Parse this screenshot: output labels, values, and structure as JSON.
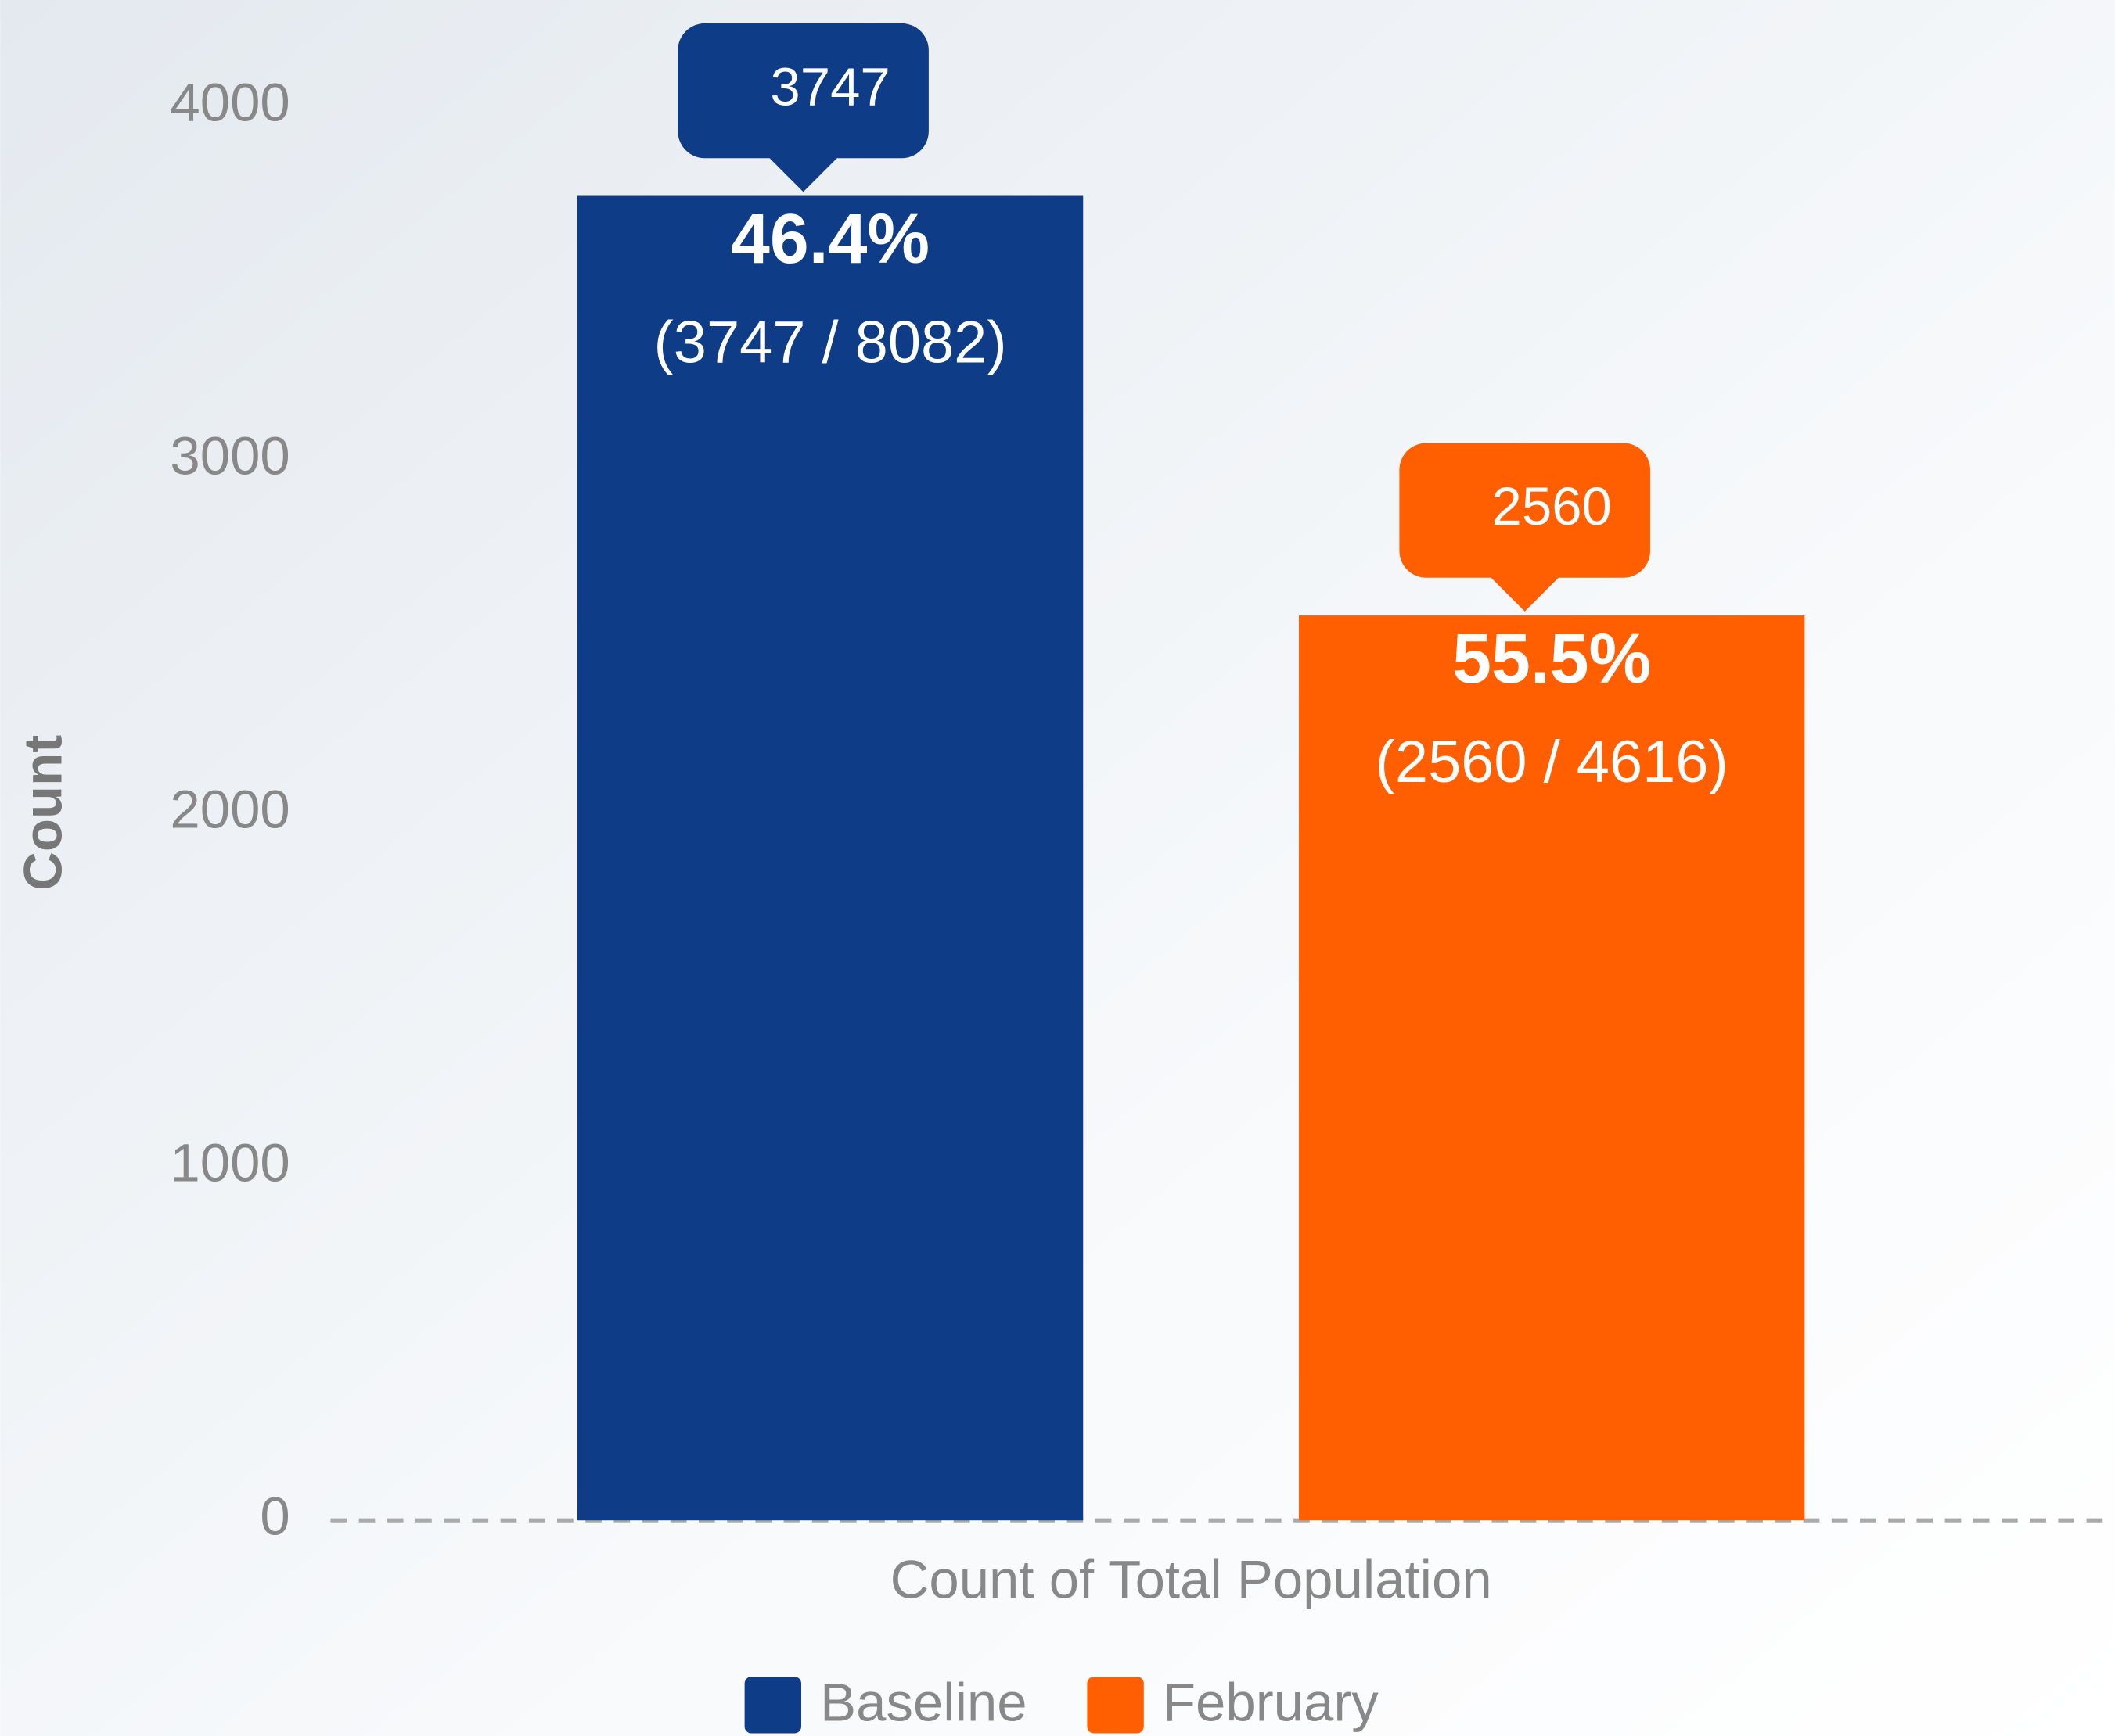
{
  "chart_data": {
    "type": "bar",
    "y_label": "Count",
    "categories": [
      "Count of Total Population"
    ],
    "series": [
      {
        "name": "Baseline",
        "color": "#0f3c87",
        "values": [
          3747
        ],
        "percent_labels": [
          "46.4%"
        ],
        "ratio_labels": [
          "(3747 / 8082)"
        ]
      },
      {
        "name": "February",
        "color": "#ff5f00",
        "values": [
          2560
        ],
        "percent_labels": [
          "55.5%"
        ],
        "ratio_labels": [
          "(2560 / 4616)"
        ]
      }
    ],
    "ylim": [
      0,
      4000
    ],
    "yticks": [
      0,
      1000,
      2000,
      3000,
      4000
    ],
    "grid": false
  }
}
